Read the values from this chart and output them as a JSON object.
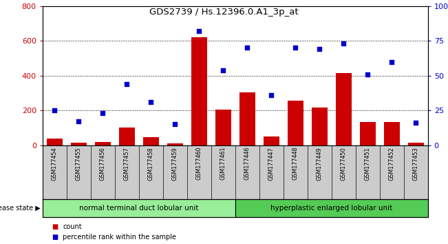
{
  "title": "GDS2739 / Hs.12396.0.A1_3p_at",
  "samples": [
    "GSM177454",
    "GSM177455",
    "GSM177456",
    "GSM177457",
    "GSM177458",
    "GSM177459",
    "GSM177460",
    "GSM177461",
    "GSM177446",
    "GSM177447",
    "GSM177448",
    "GSM177449",
    "GSM177450",
    "GSM177451",
    "GSM177452",
    "GSM177453"
  ],
  "counts": [
    40,
    15,
    20,
    100,
    45,
    10,
    620,
    205,
    305,
    50,
    255,
    215,
    415,
    135,
    135,
    15
  ],
  "percentiles": [
    25,
    17,
    23,
    44,
    31,
    15,
    82,
    54,
    70,
    36,
    70,
    69,
    73,
    51,
    60,
    16
  ],
  "group1_label": "normal terminal duct lobular unit",
  "group1_count": 8,
  "group2_label": "hyperplastic enlarged lobular unit",
  "group2_count": 8,
  "disease_state_label": "disease state",
  "legend_count": "count",
  "legend_pct": "percentile rank within the sample",
  "ylim_left": [
    0,
    800
  ],
  "ylim_right": [
    0,
    100
  ],
  "yticks_left": [
    0,
    200,
    400,
    600,
    800
  ],
  "yticks_right": [
    0,
    25,
    50,
    75,
    100
  ],
  "bar_color": "#cc0000",
  "dot_color": "#0000cc",
  "bg_color": "#ffffff",
  "group1_color": "#99ee99",
  "group2_color": "#55cc55",
  "tick_bg_color": "#cccccc"
}
